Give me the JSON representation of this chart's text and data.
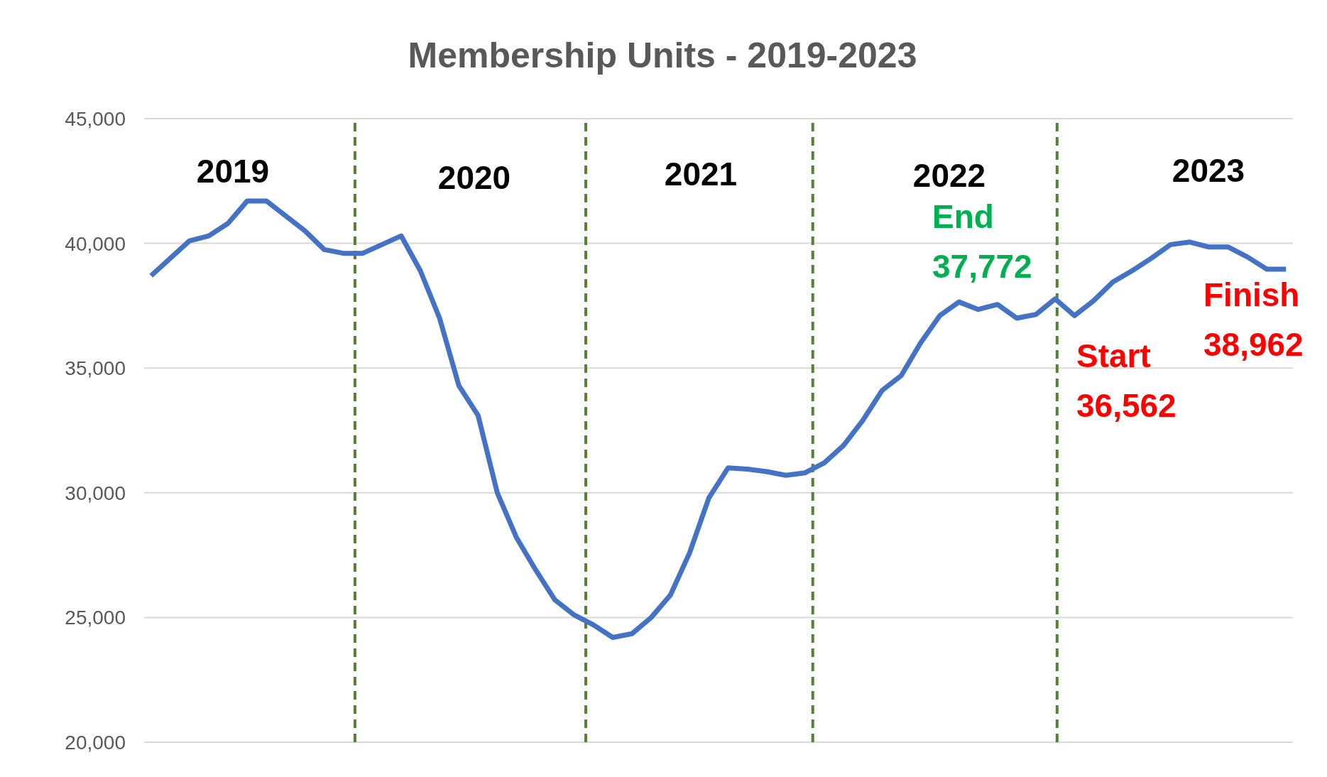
{
  "chart_data": {
    "type": "line",
    "title": "Membership Units - 2019-2023",
    "categories": [
      null,
      null,
      null,
      null,
      null,
      null,
      null,
      null,
      null,
      null,
      null,
      null,
      null,
      null,
      null,
      null,
      null,
      null,
      null,
      null,
      null,
      null,
      null,
      null,
      null,
      null,
      null,
      null,
      null,
      null,
      null,
      null,
      null,
      null,
      null,
      null,
      null,
      null,
      null,
      null,
      null,
      null,
      null,
      null,
      null,
      null,
      null,
      null,
      null,
      null,
      null,
      null,
      null,
      null,
      null,
      null,
      null,
      null,
      null,
      null
    ],
    "series": [
      {
        "color": "#4472c4",
        "values": [
          38700,
          39400,
          40100,
          40300,
          40800,
          41700,
          41700,
          41100,
          40500,
          39750,
          39600,
          39600,
          39950,
          40300,
          38900,
          37000,
          34300,
          33100,
          30000,
          28200,
          26900,
          25700,
          25100,
          24700,
          24200,
          24350,
          25000,
          25900,
          27600,
          29800,
          31000,
          30950,
          30850,
          30700,
          30800,
          31200,
          31900,
          32900,
          34100,
          34700,
          36000,
          37100,
          37650,
          37350,
          37550,
          37000,
          37150,
          37772,
          37100,
          37700,
          38450,
          38900,
          39400,
          39950,
          40050,
          39850,
          39850,
          39450,
          38962,
          38962
        ]
      }
    ],
    "ylim": [
      20000,
      45000
    ],
    "yticks": [
      {
        "value": 20000,
        "label": "20,000"
      },
      {
        "value": 25000,
        "label": "25,000"
      },
      {
        "value": 30000,
        "label": "30,000"
      },
      {
        "value": 35000,
        "label": "35,000"
      },
      {
        "value": 40000,
        "label": "40,000"
      },
      {
        "value": 45000,
        "label": "45,000"
      }
    ],
    "tick_labels": "y",
    "grid": "y",
    "marker": "none",
    "line_style": "solid",
    "ref_lines": [
      {
        "axis": "x",
        "color": "#548235",
        "line_style": "dashed"
      },
      {
        "axis": "x",
        "color": "#548235",
        "line_style": "dashed"
      },
      {
        "axis": "x",
        "color": "#548235",
        "line_style": "dashed"
      },
      {
        "axis": "x",
        "color": "#548235",
        "line_style": "dashed"
      }
    ],
    "annotations": [
      "2019",
      "2020",
      "2021",
      "2022",
      "2023",
      "End\n37,772",
      "Start\n36,562",
      "Finish\n38,962"
    ]
  }
}
